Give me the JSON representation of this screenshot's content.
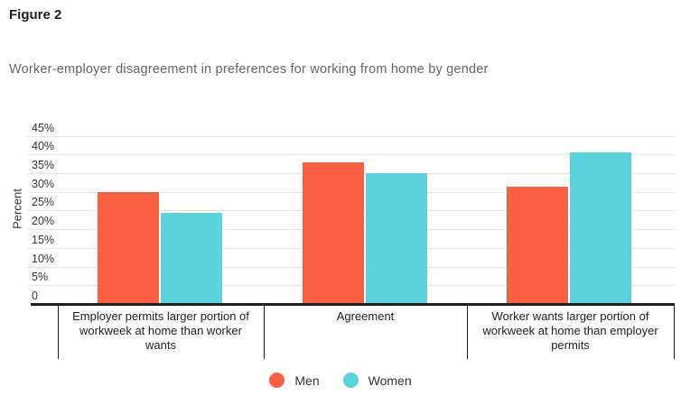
{
  "figure_label": "Figure 2",
  "subtitle": "Worker-employer disagreement in preferences for working from home by gender",
  "chart_data": {
    "type": "bar",
    "categories": [
      "Employer permits larger portion of workweek at home than worker wants",
      "Agreement",
      "Worker wants larger portion of workweek at home than employer permits"
    ],
    "series": [
      {
        "name": "Men",
        "color": "#F95F42",
        "values": [
          30,
          38,
          31.5
        ]
      },
      {
        "name": "Women",
        "color": "#5BD1DC",
        "values": [
          24.5,
          35,
          40.5
        ]
      }
    ],
    "xlabel": "",
    "ylabel": "Percent",
    "ylim": [
      0,
      45
    ],
    "ytick_step": 5,
    "ytick_labels": [
      "0",
      "5%",
      "10%",
      "15%",
      "20%",
      "25%",
      "30%",
      "35%",
      "40%",
      "45%"
    ],
    "grid": true,
    "legend_position": "bottom"
  }
}
